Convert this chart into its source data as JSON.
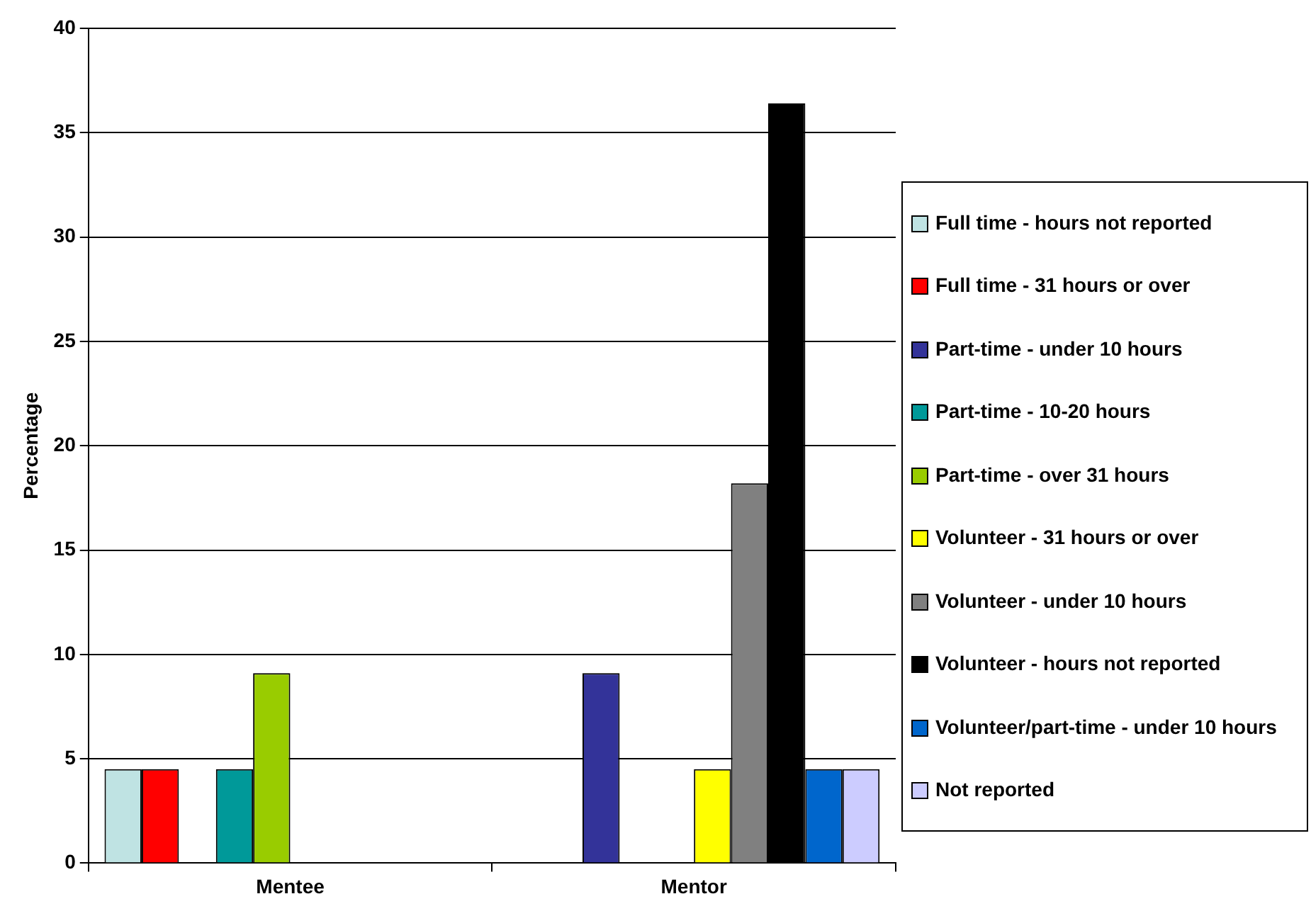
{
  "chart_data": {
    "type": "bar",
    "ylabel": "Percentage",
    "categories": [
      "Mentee",
      "Mentor"
    ],
    "ylim": [
      0,
      40
    ],
    "yticks": [
      0,
      5,
      10,
      15,
      20,
      25,
      30,
      35,
      40
    ],
    "grid": "y",
    "legend": "right",
    "series": [
      {
        "name": "Full time - hours not reported",
        "color": "#bfe3e3",
        "values": [
          4.5,
          0
        ]
      },
      {
        "name": "Full time - 31 hours or over",
        "color": "#ff0000",
        "values": [
          4.5,
          0
        ]
      },
      {
        "name": "Part-time - under 10 hours",
        "color": "#333399",
        "values": [
          0,
          9.1
        ]
      },
      {
        "name": "Part-time - 10-20 hours",
        "color": "#009999",
        "values": [
          4.5,
          0
        ]
      },
      {
        "name": "Part-time - over 31 hours",
        "color": "#99cc00",
        "values": [
          9.1,
          0
        ]
      },
      {
        "name": "Volunteer - 31 hours or over",
        "color": "#ffff00",
        "values": [
          0,
          4.5
        ]
      },
      {
        "name": "Volunteer - under 10 hours",
        "color": "#808080",
        "values": [
          0,
          18.2
        ]
      },
      {
        "name": "Volunteer - hours not reported",
        "color": "#000000",
        "values": [
          0,
          36.4
        ]
      },
      {
        "name": "Volunteer/part-time - under 10 hours",
        "color": "#0066cc",
        "values": [
          0,
          4.5
        ]
      },
      {
        "name": "Not reported",
        "color": "#ccccff",
        "values": [
          0,
          4.5
        ]
      }
    ]
  }
}
